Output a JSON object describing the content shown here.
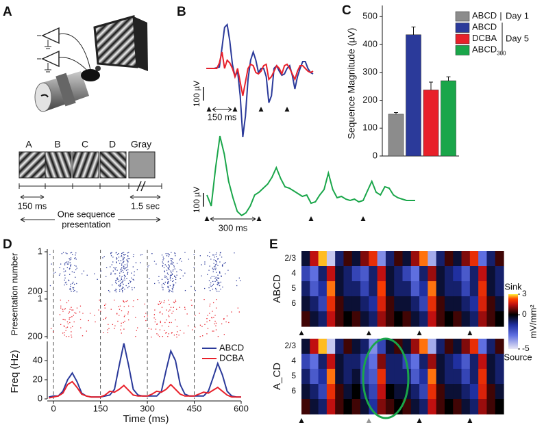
{
  "panel_labels": [
    "A",
    "B",
    "C",
    "D",
    "E"
  ],
  "panel_a": {
    "stimuli": [
      "A",
      "B",
      "C",
      "D",
      "Gray"
    ],
    "durations": [
      "150 ms",
      "1.5 sec"
    ],
    "caption": [
      "One sequence",
      "presentation"
    ]
  },
  "chart_data": [
    {
      "type": "line",
      "x": [
        -15,
        0,
        15,
        30,
        45,
        60,
        75,
        90,
        105,
        120,
        135,
        150,
        165,
        180,
        195,
        210,
        225,
        240,
        255,
        270,
        285,
        300,
        315,
        330,
        345,
        360,
        375,
        390,
        405,
        420,
        435,
        450,
        465,
        480,
        495,
        510,
        525,
        540,
        555,
        570,
        585,
        600
      ],
      "series": [
        {
          "name": "ABCD",
          "color": "#2b3a9a",
          "values": [
            0,
            0,
            0,
            0,
            5,
            10,
            150,
            300,
            320,
            200,
            30,
            -60,
            -20,
            -200,
            -500,
            -350,
            -80,
            60,
            120,
            60,
            -30,
            0,
            0,
            -60,
            -250,
            -200,
            0,
            20,
            -20,
            -50,
            -40,
            0,
            20,
            -50,
            -150,
            -60,
            0,
            50,
            50,
            0,
            -30,
            -40
          ]
        },
        {
          "name": "DCBA",
          "color": "#e8202a",
          "values": [
            0,
            0,
            0,
            0,
            0,
            40,
            120,
            0,
            60,
            40,
            0,
            -60,
            0,
            -100,
            -200,
            -100,
            0,
            30,
            20,
            -30,
            -40,
            -20,
            20,
            30,
            -80,
            -60,
            -20,
            20,
            0,
            -40,
            20,
            30,
            0,
            -40,
            -80,
            -20,
            20,
            20,
            0,
            -20,
            -30,
            -20
          ]
        }
      ],
      "stimulus_onsets": [
        0,
        150,
        300,
        450
      ],
      "scale_bar": {
        "x": {
          "value": 150,
          "label": "150 ms"
        },
        "y": {
          "value": 100,
          "label": "100 µV"
        }
      }
    },
    {
      "type": "line",
      "x": [
        0,
        25,
        50,
        75,
        100,
        125,
        150,
        175,
        200,
        225,
        250,
        275,
        300,
        325,
        350,
        375,
        400,
        425,
        450,
        475,
        500,
        525,
        550,
        575,
        600,
        625,
        650,
        675,
        700,
        725,
        750,
        775,
        800,
        825,
        850,
        875,
        900,
        925,
        950,
        975,
        1000,
        1025,
        1050,
        1075,
        1100,
        1125,
        1150,
        1175,
        1200
      ],
      "series": [
        {
          "name": "ABCD300",
          "color": "#1aa64a",
          "values": [
            0,
            -80,
            200,
            430,
            300,
            100,
            -20,
            -120,
            -150,
            -130,
            -80,
            0,
            20,
            50,
            80,
            130,
            200,
            120,
            60,
            50,
            30,
            10,
            -10,
            0,
            -60,
            -50,
            0,
            40,
            160,
            40,
            -20,
            -10,
            -30,
            -40,
            -30,
            -50,
            -40,
            30,
            100,
            20,
            0,
            60,
            50,
            0,
            -20,
            -30,
            -40,
            -40,
            -40
          ]
        }
      ],
      "stimulus_onsets": [
        0,
        300,
        600,
        900
      ],
      "scale_bar": {
        "x": {
          "value": 300,
          "label": "300 ms"
        },
        "y": {
          "value": 100,
          "label": "100 µV"
        }
      }
    },
    {
      "type": "bar",
      "ylabel": "Sequence Magnitude (µV)",
      "categories": [
        "ABCD",
        "ABCD",
        "DCBA",
        "ABCD"
      ],
      "category_subscripts": [
        null,
        null,
        null,
        "300"
      ],
      "colors": [
        "#8c8c8c",
        "#2b3a9a",
        "#e8202a",
        "#1aa64a"
      ],
      "values": [
        150,
        435,
        237,
        270
      ],
      "errors": [
        6,
        28,
        28,
        14
      ],
      "ylim": [
        0,
        540
      ],
      "yticks": [
        0,
        100,
        200,
        300,
        400,
        500
      ],
      "group_labels": [
        "Day 1",
        "Day 5"
      ]
    },
    {
      "type": "line",
      "xlabel": "Time (ms)",
      "ylabel": "Freq (Hz)",
      "x": [
        -15,
        0,
        15,
        30,
        45,
        60,
        75,
        90,
        105,
        120,
        135,
        150,
        165,
        180,
        195,
        210,
        225,
        240,
        255,
        270,
        285,
        300,
        315,
        330,
        345,
        360,
        375,
        390,
        405,
        420,
        435,
        450,
        465,
        480,
        495,
        510,
        525,
        540,
        555,
        570,
        585,
        600
      ],
      "series": [
        {
          "name": "ABCD",
          "color": "#2b3a9a",
          "values": [
            2,
            3,
            3,
            8,
            20,
            27,
            18,
            6,
            3,
            2,
            2,
            2,
            3,
            4,
            10,
            35,
            58,
            35,
            10,
            4,
            3,
            3,
            3,
            3,
            8,
            30,
            50,
            40,
            15,
            5,
            3,
            3,
            3,
            3,
            8,
            22,
            37,
            25,
            8,
            3,
            2,
            2
          ]
        },
        {
          "name": "DCBA",
          "color": "#e8202a",
          "values": [
            1,
            2,
            3,
            6,
            15,
            18,
            12,
            5,
            3,
            2,
            2,
            2,
            4,
            8,
            7,
            10,
            14,
            9,
            4,
            3,
            3,
            3,
            5,
            8,
            7,
            10,
            15,
            10,
            5,
            3,
            3,
            3,
            5,
            7,
            6,
            9,
            12,
            8,
            4,
            2,
            2,
            2
          ]
        }
      ],
      "xlim": [
        -20,
        600
      ],
      "xticks": [
        0,
        150,
        300,
        450,
        600
      ],
      "ylim": [
        0,
        60
      ],
      "yticks": [
        0,
        20,
        40
      ],
      "stimulus_onsets": [
        0,
        150,
        300,
        450
      ],
      "raster": {
        "ylabel": "Presentation number",
        "yticks": [
          1,
          200
        ]
      }
    },
    {
      "type": "heatmap",
      "rows": [
        "2/3",
        "4",
        "5",
        "6",
        null
      ],
      "zlim": [
        -5,
        3
      ],
      "zticks": [
        3,
        0,
        -5
      ],
      "colorbar_label": "mV/mm²",
      "colorbar_top": "Sink",
      "colorbar_bottom": "Source",
      "series": [
        {
          "name": "ABCD",
          "values": [
            [
              -0.5,
              1.5,
              2.8,
              -4.5,
              -1,
              0.5,
              -0.5,
              1,
              2,
              -3.5,
              -1,
              0.5,
              -0.5,
              1.2,
              2.5,
              -4,
              -1,
              0.5,
              -0.5,
              1,
              2,
              -3,
              -1,
              0.5
            ],
            [
              -2,
              -3,
              -1,
              1.5,
              -0.5,
              -1,
              -2,
              -2.5,
              -1,
              1.5,
              -0.5,
              -1,
              -2,
              -3,
              -1,
              1.2,
              -0.5,
              -1,
              -1.5,
              -2.5,
              -1,
              1.5,
              -0.5,
              -1
            ],
            [
              -1,
              -2.5,
              -1.5,
              2.5,
              -0.5,
              -1,
              -1,
              -2,
              -1,
              2.2,
              -0.5,
              -1,
              -1,
              -2.5,
              -1.5,
              2.5,
              -0.5,
              -1,
              -1,
              -2,
              -1,
              2,
              -0.5,
              -1
            ],
            [
              -0.5,
              -1,
              -2,
              2,
              0.5,
              -0.5,
              -0.5,
              -1,
              -1.5,
              1.8,
              0.5,
              -0.5,
              -0.5,
              -1,
              -2,
              2,
              0.5,
              -0.5,
              -0.5,
              -1,
              -1.5,
              1.8,
              0.5,
              -0.5
            ],
            [
              0.5,
              -0.5,
              -1,
              1.5,
              0.5,
              0,
              0.5,
              -0.5,
              -1,
              1.2,
              0.5,
              0,
              0.5,
              -0.5,
              -1,
              1.5,
              0.5,
              0,
              0.5,
              -0.5,
              -1,
              1.2,
              0.5,
              0
            ]
          ]
        },
        {
          "name": "A_CD",
          "values": [
            [
              -0.5,
              1.5,
              2.8,
              -4.5,
              -1,
              0.5,
              -0.5,
              -1,
              -3.5,
              -2,
              -0.5,
              0.5,
              -0.5,
              1.2,
              2.5,
              -4,
              -1,
              0.5,
              -0.5,
              1,
              2,
              -3,
              -1,
              0.5
            ],
            [
              -2,
              -3,
              -1,
              1.5,
              -0.5,
              -1,
              -1,
              -2,
              -3,
              1,
              -1,
              -1,
              -2,
              -3,
              -1,
              1.2,
              -0.5,
              -1,
              -1.5,
              -2.5,
              -1,
              1.5,
              -0.5,
              -1
            ],
            [
              -1,
              -2.5,
              -1.5,
              2.5,
              -0.5,
              -1,
              -0.5,
              -2,
              -2.5,
              2,
              -1,
              -1,
              -1,
              -2.5,
              -1.5,
              2.5,
              -0.5,
              -1,
              -1,
              -2,
              -1,
              2,
              -0.5,
              -1
            ],
            [
              -0.5,
              -1,
              -2,
              2,
              0.5,
              -0.5,
              0,
              -1,
              -2,
              1.5,
              0,
              -0.5,
              -0.5,
              -1,
              -2,
              2,
              0.5,
              -0.5,
              -0.5,
              -1,
              -1.5,
              1.8,
              0.5,
              -0.5
            ],
            [
              0.5,
              -0.5,
              -1,
              1.5,
              0.5,
              0,
              0.5,
              -0.5,
              -1.5,
              1,
              0.5,
              0,
              0.5,
              -0.5,
              -1,
              1.5,
              0.5,
              0,
              0.5,
              -0.5,
              -1,
              1.2,
              0.5,
              0
            ]
          ]
        }
      ]
    }
  ]
}
